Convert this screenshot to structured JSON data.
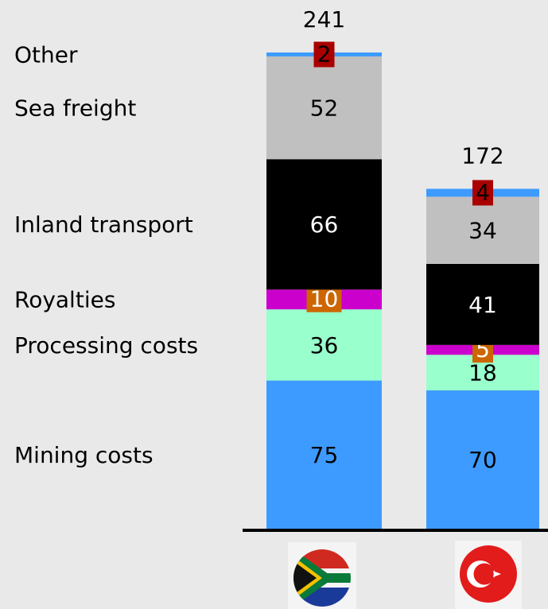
{
  "chart_data": {
    "type": "stacked_bar",
    "categories": [
      null,
      null
    ],
    "totals": [
      241,
      172
    ],
    "series": [
      {
        "name": "Mining costs",
        "color": "#3d9bff",
        "values": [
          75,
          70
        ]
      },
      {
        "name": "Processing costs",
        "color": "#99ffcc",
        "values": [
          36,
          18
        ]
      },
      {
        "name": "Royalties",
        "color": "#cc00cc",
        "label_box": "#cc6600",
        "values": [
          10,
          5
        ]
      },
      {
        "name": "Inland transport",
        "color": "#000000",
        "values": [
          66,
          41
        ]
      },
      {
        "name": "Sea freight",
        "color": "#c0c0c0",
        "values": [
          52,
          34
        ]
      },
      {
        "name": "Other",
        "color": "#3d9bff",
        "label_box": "#aa0000",
        "values": [
          2,
          4
        ]
      }
    ]
  }
}
